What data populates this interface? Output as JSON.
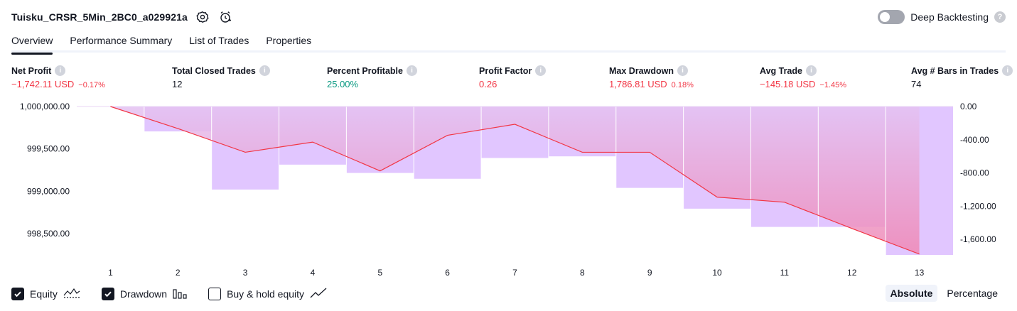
{
  "header": {
    "strategy_name": "Tuisku_CRSR_5Min_2BC0_a029921a",
    "deep_backtesting_label": "Deep Backtesting"
  },
  "tabs": [
    {
      "label": "Overview",
      "active": true
    },
    {
      "label": "Performance Summary",
      "active": false
    },
    {
      "label": "List of Trades",
      "active": false
    },
    {
      "label": "Properties",
      "active": false
    }
  ],
  "stats": [
    {
      "label": "Net Profit",
      "value": "−1,742.11 USD",
      "pct": "−0.17%",
      "tone": "neg"
    },
    {
      "label": "Total Closed Trades",
      "value": "12",
      "pct": "",
      "tone": "neutral"
    },
    {
      "label": "Percent Profitable",
      "value": "25.00%",
      "pct": "",
      "tone": "pos"
    },
    {
      "label": "Profit Factor",
      "value": "0.26",
      "pct": "",
      "tone": "neg"
    },
    {
      "label": "Max Drawdown",
      "value": "1,786.81 USD",
      "pct": "0.18%",
      "tone": "neg"
    },
    {
      "label": "Avg Trade",
      "value": "−145.18 USD",
      "pct": "−1.45%",
      "tone": "neg"
    },
    {
      "label": "Avg # Bars in Trades",
      "value": "74",
      "pct": "",
      "tone": "neutral"
    }
  ],
  "chart_data": {
    "type": "line",
    "x": [
      1,
      2,
      3,
      4,
      5,
      6,
      7,
      8,
      9,
      10,
      11,
      12,
      13
    ],
    "series": [
      {
        "name": "Equity",
        "axis": "left",
        "values": [
          1000000.0,
          999740.0,
          999460.0,
          999580.0,
          999240.0,
          999660.0,
          999790.0,
          999460.0,
          999460.0,
          998930.0,
          998870.0,
          998560.0,
          998257.89
        ]
      },
      {
        "name": "Drawdown",
        "axis": "right",
        "values": [
          0,
          -300,
          -1000,
          -700,
          -800,
          -870,
          -620,
          -600,
          -980,
          -1230,
          -1450,
          -1450,
          -1786.81
        ]
      }
    ],
    "left_ticks": [
      "1,000,000.00",
      "999,500.00",
      "999,000.00",
      "998,500.00"
    ],
    "left_tick_values": [
      1000000,
      999500,
      999000,
      998500
    ],
    "right_ticks": [
      "0.00",
      "-400.00",
      "-800.00",
      "-1,200.00",
      "-1,600.00"
    ],
    "right_tick_values": [
      0,
      -400,
      -800,
      -1200,
      -1600
    ],
    "x_ticks": [
      "1",
      "2",
      "3",
      "4",
      "5",
      "6",
      "7",
      "8",
      "9",
      "10",
      "11",
      "12",
      "13"
    ],
    "colors": {
      "equity_line": "#f23645",
      "drawdown_bar": "#e1c6ff",
      "area_top": "#e4c2f2",
      "area_bottom": "#f088b4"
    }
  },
  "legend": [
    {
      "label": "Equity",
      "checked": true,
      "icon": "equity-wave-icon"
    },
    {
      "label": "Drawdown",
      "checked": true,
      "icon": "drawdown-bars-icon"
    },
    {
      "label": "Buy & hold equity",
      "checked": false,
      "icon": "trend-line-icon"
    }
  ],
  "mode": {
    "absolute": "Absolute",
    "percentage": "Percentage"
  }
}
